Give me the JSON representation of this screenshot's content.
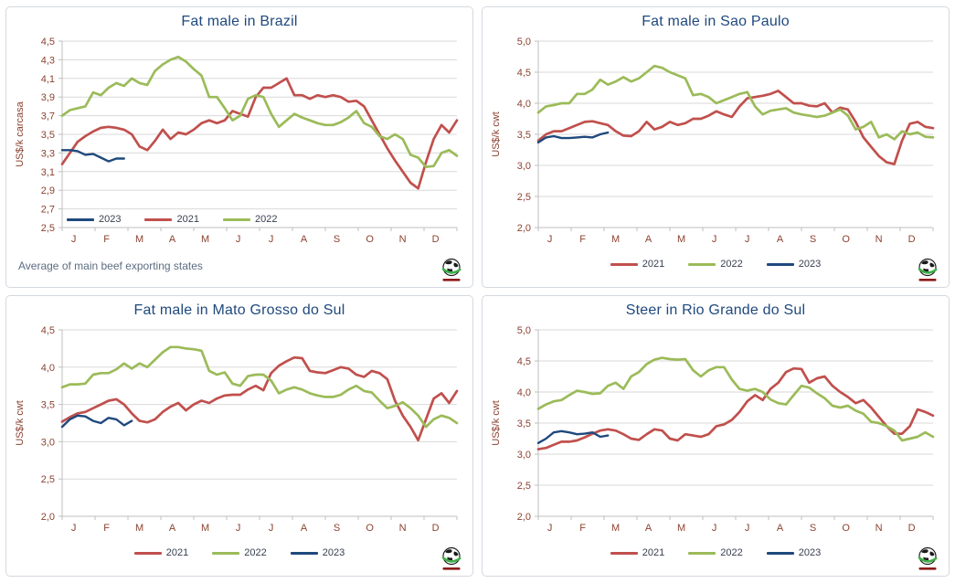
{
  "colors": {
    "red": "#C0504D",
    "green": "#9BBB59",
    "blue": "#1F497D",
    "grid": "#D9D9D9",
    "axis_line": "#BFBFBF",
    "axis_text": "#8B4230",
    "title_text": "#1F497D",
    "legend_text": "#37404F",
    "footnote_text": "#5D6D82",
    "logo_green": "#3FAE49",
    "logo_dark": "#1A1A1A",
    "logo_text_red": "#8B1A1A"
  },
  "months": [
    "J",
    "F",
    "M",
    "A",
    "M",
    "J",
    "J",
    "A",
    "S",
    "O",
    "N",
    "D"
  ],
  "logo": {
    "icon": "globe-icon"
  },
  "chart_data": [
    {
      "type": "line",
      "title": "Fat male in Brazil",
      "ylabel": "US$/k carcasa",
      "ylim": [
        2.5,
        4.5
      ],
      "ystep": 0.2,
      "grid": true,
      "legend_position": "inside-bottom-left",
      "legend_order": [
        "2023",
        "2021",
        "2022"
      ],
      "footnote": "Average  of main beef exporting states",
      "x_unit": "weeks",
      "weeks_per_year": 52,
      "series": [
        {
          "name": "2021",
          "color_key": "red",
          "values": [
            3.18,
            3.3,
            3.42,
            3.48,
            3.53,
            3.57,
            3.58,
            3.57,
            3.55,
            3.5,
            3.37,
            3.33,
            3.43,
            3.55,
            3.45,
            3.52,
            3.5,
            3.55,
            3.62,
            3.65,
            3.62,
            3.65,
            3.75,
            3.72,
            3.69,
            3.9,
            4.0,
            4.0,
            4.05,
            4.1,
            3.92,
            3.92,
            3.88,
            3.92,
            3.9,
            3.92,
            3.9,
            3.85,
            3.86,
            3.8,
            3.65,
            3.5,
            3.35,
            3.22,
            3.1,
            2.98,
            2.92,
            3.2,
            3.45,
            3.6,
            3.52,
            3.65
          ]
        },
        {
          "name": "2022",
          "color_key": "green",
          "values": [
            3.7,
            3.76,
            3.78,
            3.8,
            3.95,
            3.92,
            4.0,
            4.05,
            4.02,
            4.1,
            4.05,
            4.03,
            4.18,
            4.25,
            4.3,
            4.33,
            4.28,
            4.2,
            4.13,
            3.9,
            3.9,
            3.78,
            3.65,
            3.7,
            3.88,
            3.92,
            3.9,
            3.72,
            3.58,
            3.65,
            3.72,
            3.68,
            3.65,
            3.62,
            3.6,
            3.6,
            3.63,
            3.68,
            3.75,
            3.62,
            3.58,
            3.48,
            3.45,
            3.5,
            3.45,
            3.28,
            3.25,
            3.15,
            3.16,
            3.3,
            3.33,
            3.27
          ]
        },
        {
          "name": "2023",
          "color_key": "blue",
          "values": [
            3.33,
            3.33,
            3.32,
            3.28,
            3.29,
            3.25,
            3.21,
            3.24,
            3.24
          ]
        }
      ]
    },
    {
      "type": "line",
      "title": "Fat male in Sao Paulo",
      "ylabel": "US$/k cwt",
      "ylim": [
        2.0,
        5.0
      ],
      "ystep": 0.5,
      "grid": true,
      "legend_position": "below-center",
      "legend_order": [
        "2021",
        "2022",
        "2023"
      ],
      "x_unit": "weeks",
      "weeks_per_year": 52,
      "series": [
        {
          "name": "2021",
          "color_key": "red",
          "values": [
            3.4,
            3.5,
            3.55,
            3.55,
            3.6,
            3.65,
            3.7,
            3.71,
            3.68,
            3.65,
            3.55,
            3.48,
            3.47,
            3.55,
            3.7,
            3.58,
            3.62,
            3.7,
            3.65,
            3.68,
            3.75,
            3.75,
            3.8,
            3.87,
            3.82,
            3.78,
            3.95,
            4.08,
            4.1,
            4.12,
            4.15,
            4.2,
            4.1,
            4.0,
            4.0,
            3.96,
            3.95,
            4.0,
            3.85,
            3.93,
            3.9,
            3.7,
            3.45,
            3.3,
            3.15,
            3.05,
            3.02,
            3.4,
            3.67,
            3.7,
            3.62,
            3.6
          ]
        },
        {
          "name": "2022",
          "color_key": "green",
          "values": [
            3.85,
            3.95,
            3.97,
            4.0,
            4.0,
            4.15,
            4.15,
            4.22,
            4.38,
            4.3,
            4.35,
            4.42,
            4.35,
            4.4,
            4.5,
            4.6,
            4.57,
            4.5,
            4.45,
            4.4,
            4.13,
            4.15,
            4.1,
            4.0,
            4.05,
            4.1,
            4.15,
            4.18,
            3.95,
            3.82,
            3.88,
            3.9,
            3.92,
            3.85,
            3.82,
            3.8,
            3.78,
            3.8,
            3.85,
            3.9,
            3.8,
            3.58,
            3.62,
            3.7,
            3.45,
            3.5,
            3.42,
            3.55,
            3.5,
            3.53,
            3.46,
            3.45
          ]
        },
        {
          "name": "2023",
          "color_key": "blue",
          "values": [
            3.37,
            3.45,
            3.47,
            3.44,
            3.44,
            3.45,
            3.46,
            3.45,
            3.5,
            3.53
          ]
        }
      ]
    },
    {
      "type": "line",
      "title": "Fat male in Mato Grosso do Sul",
      "ylabel": "US$/k cwt",
      "ylim": [
        2.0,
        4.5
      ],
      "ystep": 0.5,
      "grid": true,
      "legend_position": "below-center",
      "legend_order": [
        "2021",
        "2022",
        "2023"
      ],
      "x_unit": "weeks",
      "weeks_per_year": 52,
      "series": [
        {
          "name": "2021",
          "color_key": "red",
          "values": [
            3.27,
            3.33,
            3.38,
            3.4,
            3.45,
            3.5,
            3.55,
            3.57,
            3.5,
            3.38,
            3.28,
            3.26,
            3.3,
            3.4,
            3.47,
            3.52,
            3.42,
            3.5,
            3.55,
            3.52,
            3.58,
            3.62,
            3.63,
            3.63,
            3.7,
            3.75,
            3.69,
            3.92,
            4.02,
            4.08,
            4.13,
            4.12,
            3.95,
            3.93,
            3.92,
            3.96,
            4.0,
            3.98,
            3.9,
            3.87,
            3.95,
            3.92,
            3.84,
            3.55,
            3.35,
            3.2,
            3.02,
            3.3,
            3.58,
            3.65,
            3.52,
            3.68
          ]
        },
        {
          "name": "2022",
          "color_key": "green",
          "values": [
            3.73,
            3.77,
            3.77,
            3.78,
            3.9,
            3.92,
            3.92,
            3.97,
            4.05,
            3.98,
            4.05,
            4.0,
            4.1,
            4.2,
            4.27,
            4.27,
            4.25,
            4.24,
            4.22,
            3.95,
            3.9,
            3.93,
            3.78,
            3.75,
            3.88,
            3.9,
            3.9,
            3.82,
            3.65,
            3.7,
            3.73,
            3.7,
            3.65,
            3.62,
            3.6,
            3.6,
            3.63,
            3.7,
            3.75,
            3.68,
            3.66,
            3.55,
            3.45,
            3.48,
            3.53,
            3.45,
            3.35,
            3.2,
            3.3,
            3.35,
            3.32,
            3.25
          ]
        },
        {
          "name": "2023",
          "color_key": "blue",
          "values": [
            3.2,
            3.3,
            3.35,
            3.34,
            3.28,
            3.25,
            3.32,
            3.3,
            3.22,
            3.28
          ]
        }
      ]
    },
    {
      "type": "line",
      "title": "Steer  in Rio Grande do Sul",
      "ylabel": "US$/k cwt",
      "ylim": [
        2.0,
        5.0
      ],
      "ystep": 0.5,
      "grid": true,
      "legend_position": "below-center",
      "legend_order": [
        "2021",
        "2022",
        "2023"
      ],
      "x_unit": "weeks",
      "weeks_per_year": 52,
      "series": [
        {
          "name": "2021",
          "color_key": "red",
          "values": [
            3.08,
            3.1,
            3.15,
            3.2,
            3.2,
            3.22,
            3.27,
            3.33,
            3.38,
            3.4,
            3.38,
            3.32,
            3.25,
            3.23,
            3.32,
            3.4,
            3.38,
            3.25,
            3.22,
            3.32,
            3.3,
            3.28,
            3.32,
            3.45,
            3.48,
            3.55,
            3.68,
            3.85,
            3.95,
            3.87,
            4.05,
            4.15,
            4.32,
            4.38,
            4.37,
            4.15,
            4.22,
            4.25,
            4.1,
            4.0,
            3.92,
            3.82,
            3.87,
            3.75,
            3.6,
            3.45,
            3.33,
            3.33,
            3.45,
            3.72,
            3.68,
            3.62
          ]
        },
        {
          "name": "2022",
          "color_key": "green",
          "values": [
            3.73,
            3.8,
            3.85,
            3.87,
            3.95,
            4.02,
            4.0,
            3.97,
            3.98,
            4.1,
            4.15,
            4.05,
            4.25,
            4.32,
            4.45,
            4.52,
            4.55,
            4.53,
            4.52,
            4.53,
            4.35,
            4.25,
            4.35,
            4.4,
            4.4,
            4.2,
            4.05,
            4.02,
            4.05,
            4.0,
            3.88,
            3.82,
            3.8,
            3.95,
            4.1,
            4.07,
            3.98,
            3.9,
            3.78,
            3.75,
            3.78,
            3.7,
            3.65,
            3.52,
            3.5,
            3.45,
            3.38,
            3.22,
            3.25,
            3.28,
            3.35,
            3.28
          ]
        },
        {
          "name": "2023",
          "color_key": "blue",
          "values": [
            3.18,
            3.25,
            3.35,
            3.37,
            3.35,
            3.32,
            3.33,
            3.35,
            3.28,
            3.3
          ]
        }
      ]
    }
  ]
}
